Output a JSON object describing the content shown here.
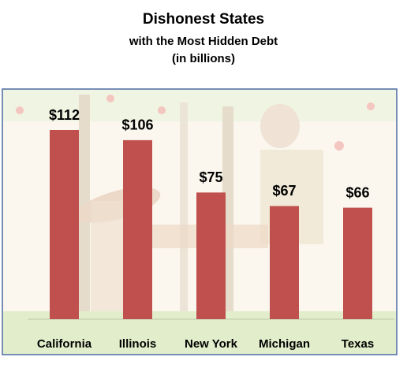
{
  "chart_data": {
    "type": "bar",
    "title": "Dishonest States",
    "subtitle": [
      "with the Most Hidden Debt",
      "(in billions)"
    ],
    "categories": [
      "California",
      "Illinois",
      "New York",
      "Michigan",
      "Texas"
    ],
    "values": [
      112,
      106,
      75,
      67,
      66
    ],
    "value_labels": [
      "$112",
      "$106",
      "$75",
      "$67",
      "$66"
    ],
    "color": "#c0504d"
  }
}
